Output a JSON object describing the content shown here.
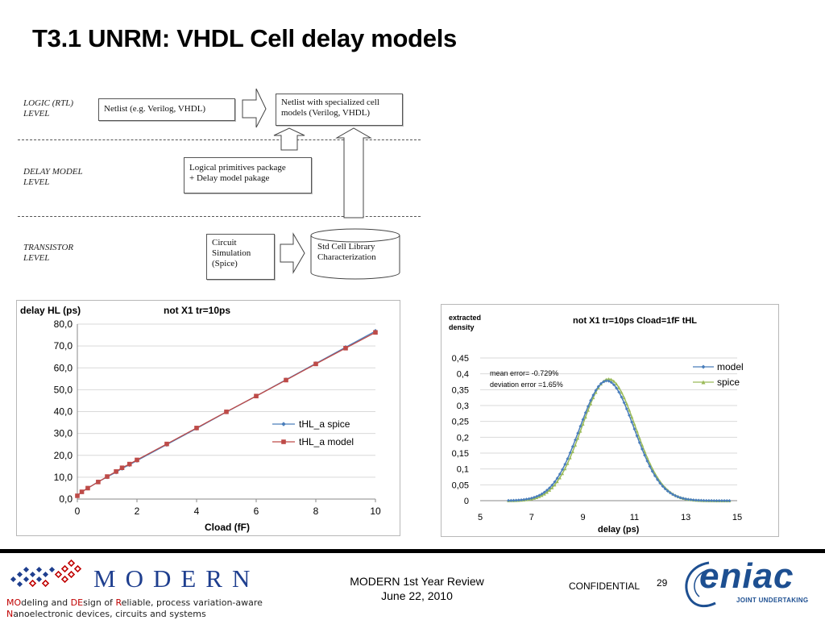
{
  "slide": {
    "title": "T3.1 UNRM: VHDL Cell delay models"
  },
  "diagram": {
    "levels": [
      {
        "label": "LOGIC (RTL)\nLEVEL"
      },
      {
        "label": "DELAY MODEL\nLEVEL"
      },
      {
        "label": "TRANSISTOR\nLEVEL"
      }
    ],
    "boxes": {
      "netlist": "Netlist (e.g. Verilog, VHDL)",
      "netlist_special": "Netlist with specialized cell\nmodels (Verilog, VHDL)",
      "primitives": "Logical primitives package\n+ Delay model pakage",
      "circuit_sim": "Circuit\nSimulation\n(Spice)",
      "std_cell": "Std Cell Library\nCharacterization"
    }
  },
  "chart_data": [
    {
      "type": "line",
      "title": "not X1 tr=10ps",
      "ylabel": "delay HL (ps)",
      "xlabel": "Cload (fF)",
      "xlim": [
        0,
        10
      ],
      "ylim": [
        0,
        80
      ],
      "xticks": [
        "0",
        "2",
        "4",
        "6",
        "8",
        "10"
      ],
      "yticks": [
        "0,0",
        "10,0",
        "20,0",
        "30,0",
        "40,0",
        "50,0",
        "60,0",
        "70,0",
        "80,0"
      ],
      "grid": true,
      "legend_position": "right",
      "x": [
        0,
        0.15,
        0.35,
        0.7,
        1,
        1.3,
        1.5,
        1.75,
        2,
        3,
        4,
        5,
        6,
        7,
        8,
        9,
        10
      ],
      "series": [
        {
          "name": "tHL_a spice",
          "color": "#4a7ebb",
          "marker": "diamond",
          "values": [
            1.6,
            3.3,
            5.0,
            7.9,
            10.1,
            12.3,
            14.0,
            15.7,
            17.6,
            24.9,
            32.3,
            39.8,
            47.1,
            54.6,
            62.0,
            69.4,
            76.8
          ]
        },
        {
          "name": "tHL_a model",
          "color": "#be4b48",
          "marker": "square",
          "values": [
            1.5,
            3.3,
            5.0,
            7.8,
            10.3,
            12.6,
            14.3,
            16.0,
            17.9,
            25.2,
            32.5,
            39.9,
            47.1,
            54.4,
            61.8,
            69.0,
            76.2
          ]
        }
      ]
    },
    {
      "type": "line",
      "title": "not X1 tr=10ps Cload=1fF tHL",
      "ylabel": "extracted\ndensity",
      "xlabel": "delay (ps)",
      "xlim": [
        5,
        15
      ],
      "ylim": [
        0,
        0.45
      ],
      "xticks": [
        "5",
        "7",
        "9",
        "11",
        "13",
        "15"
      ],
      "yticks": [
        "0",
        "0,05",
        "0,1",
        "0,15",
        "0,2",
        "0,25",
        "0,3",
        "0,35",
        "0,4",
        "0,45"
      ],
      "grid": true,
      "legend_position": "top-right",
      "annotations": [
        "mean error= -0.729%",
        "deviation error =1.65%"
      ],
      "x_range": [
        6.1,
        14.7
      ],
      "series": [
        {
          "name": "model",
          "color": "#4a7ebb",
          "marker": "diamond",
          "mean": 9.93,
          "sd": 1.055,
          "peak": 0.378
        },
        {
          "name": "spice",
          "color": "#9bbb59",
          "marker": "triangle",
          "mean": 10.0,
          "sd": 1.04,
          "peak": 0.384
        }
      ]
    }
  ],
  "footer": {
    "logo_text": "MODERN",
    "tagline_line1_parts": [
      {
        "text": "MO",
        "color": "#c00000"
      },
      {
        "text": "deling and ",
        "color": "#222222"
      },
      {
        "text": "DE",
        "color": "#c00000"
      },
      {
        "text": "sign of ",
        "color": "#222222"
      },
      {
        "text": "R",
        "color": "#c00000"
      },
      {
        "text": "eliable, process variation-aware",
        "color": "#222222"
      }
    ],
    "tagline_line2_parts": [
      {
        "text": "N",
        "color": "#c00000"
      },
      {
        "text": "anoelectronic devices, circuits and systems",
        "color": "#222222"
      }
    ],
    "review_line1": "MODERN 1st Year Review",
    "review_line2": "June 22, 2010",
    "confidential": "CONFIDENTIAL",
    "page_number": "29",
    "eniac_logo": "eniac",
    "eniac_tagline": "JOINT UNDERTAKING",
    "colors": {
      "modern_blue": "#1f3f8f",
      "accent_red": "#c00000",
      "eniac_blue": "#1d4f91"
    }
  }
}
